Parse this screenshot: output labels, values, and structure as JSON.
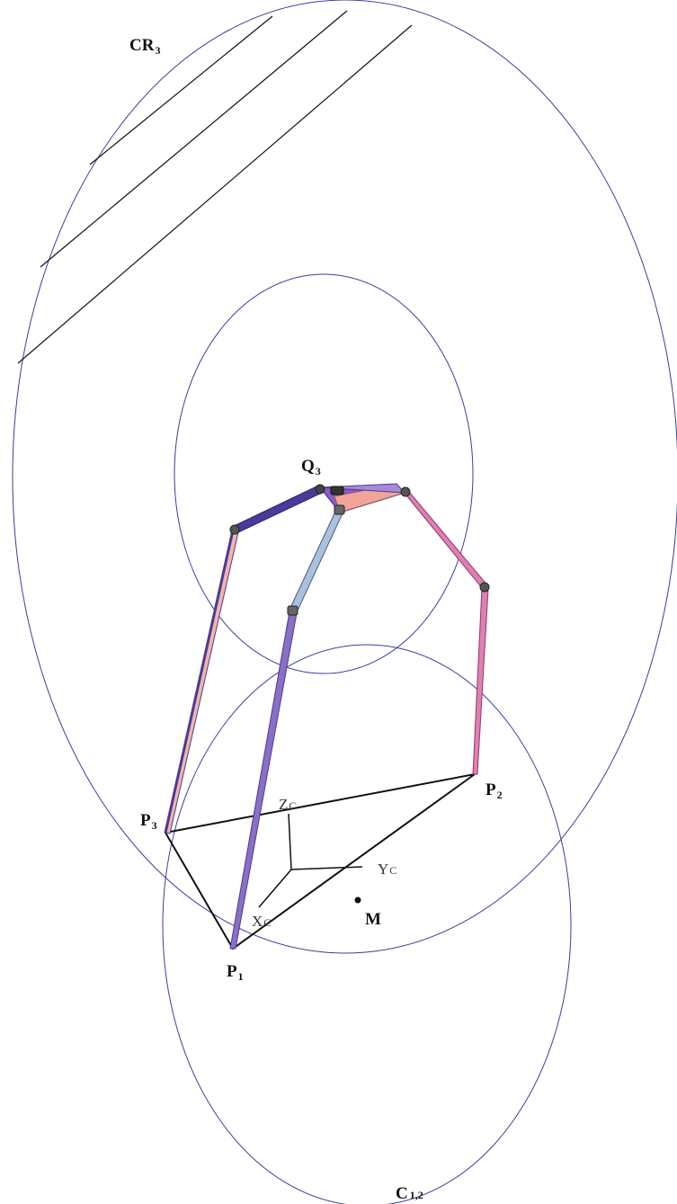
{
  "colors": {
    "circle": "#3a3f9a",
    "line": "#111111",
    "leg_purple": "#8a6fc4",
    "leg_dark_purple": "#4a3a9a",
    "leg_peach": "#f2b6a6",
    "leg_pink": "#e07fb0",
    "leg_light_blue": "#a9c1de",
    "platform_violet": "#8b5bc8",
    "platform_salmon": "#f0a598",
    "joint": "#333333"
  },
  "labels": {
    "cr3": {
      "main": "CR",
      "sub": "3"
    },
    "q3": {
      "main": "Q",
      "sub": "3"
    },
    "p1": {
      "main": "P",
      "sub": "1"
    },
    "p2": {
      "main": "P",
      "sub": "2"
    },
    "p3": {
      "main": "P",
      "sub": "3"
    },
    "m": "M",
    "zc": {
      "main": "Z",
      "sub": "C"
    },
    "yc": {
      "main": "Y",
      "sub": "C"
    },
    "xc": {
      "main": "X",
      "sub": "C"
    },
    "c12": {
      "main": "C",
      "sub": "1,2"
    }
  }
}
